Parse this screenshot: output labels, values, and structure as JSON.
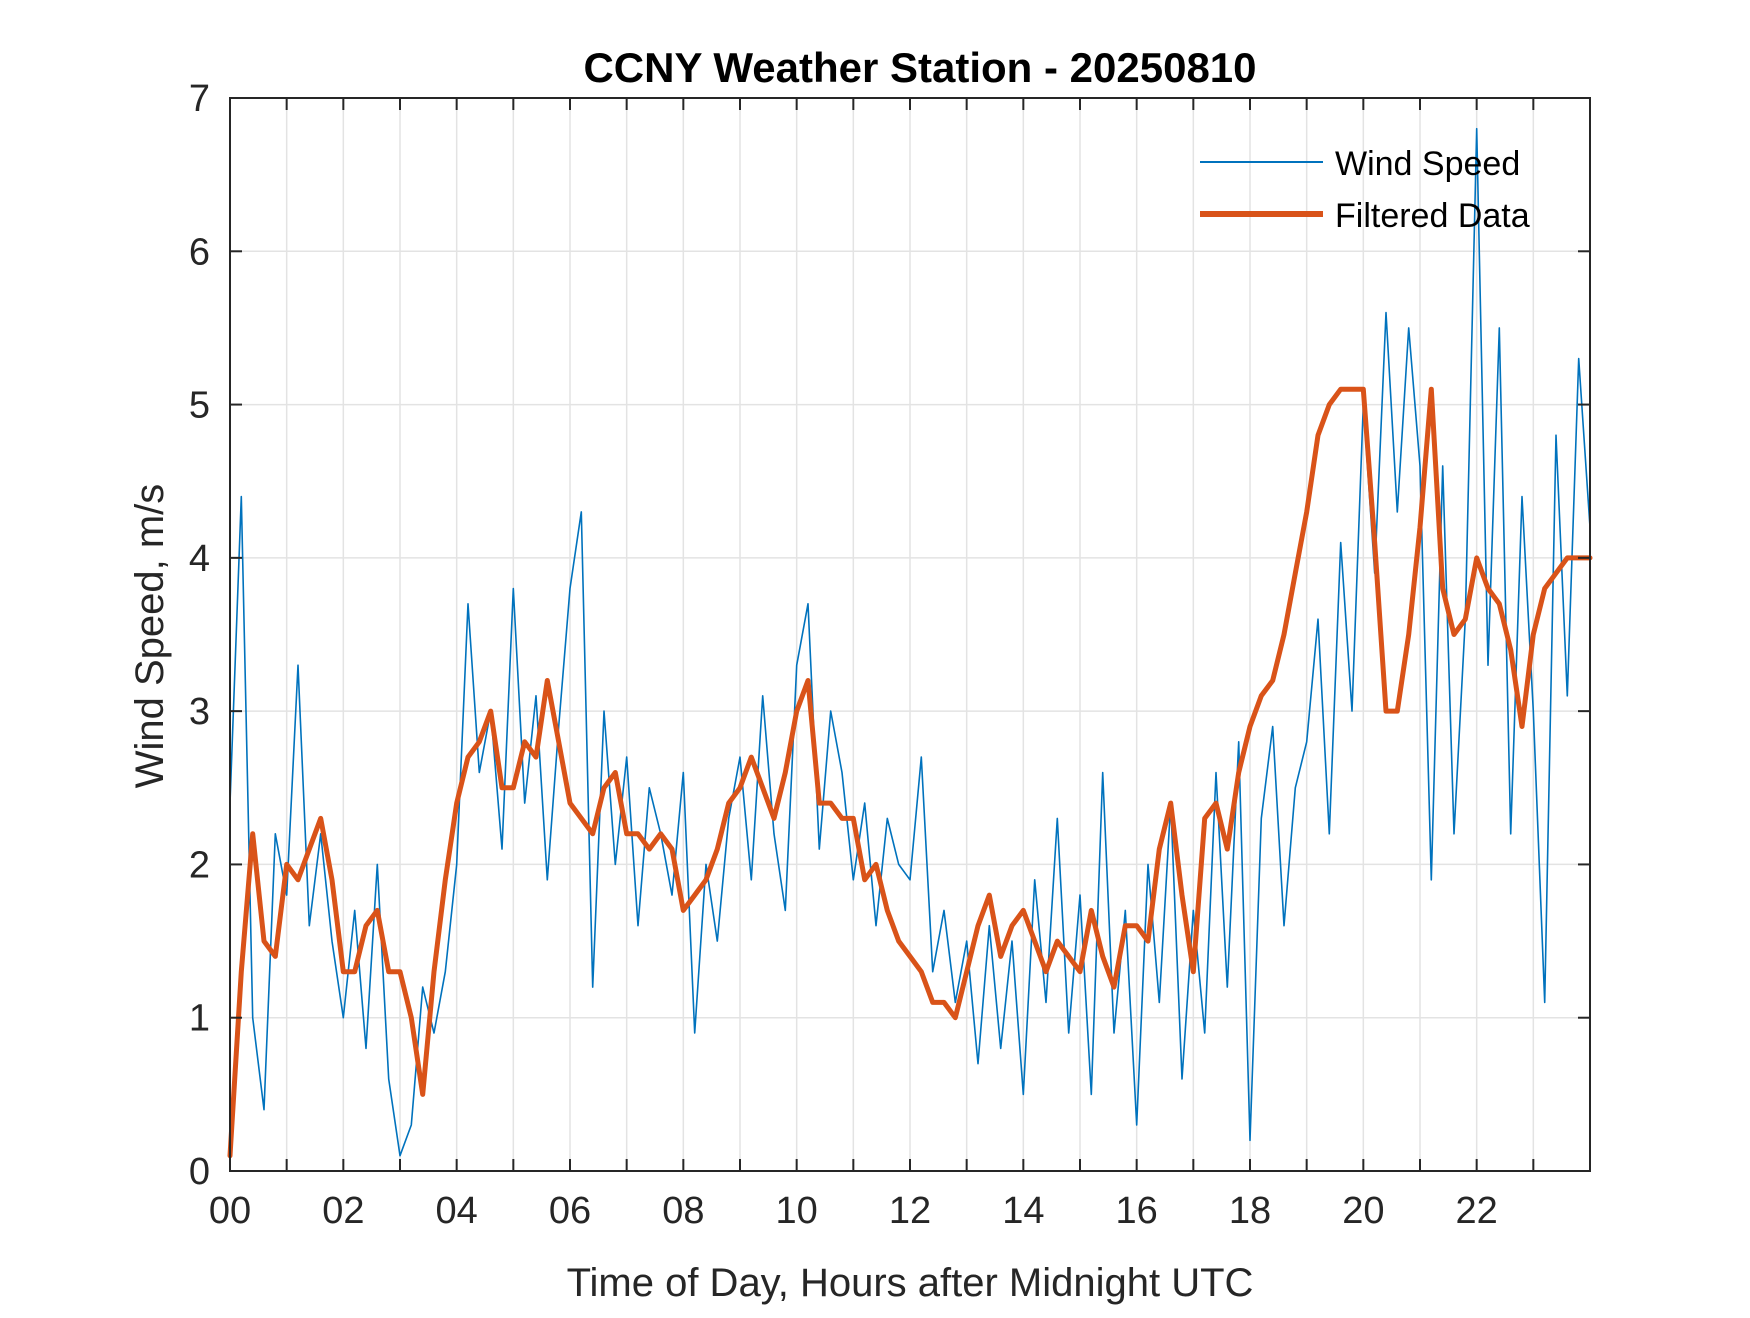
{
  "chart_data": {
    "type": "line",
    "title": "CCNY Weather Station - 20250810",
    "xlabel": "Time of Day, Hours after Midnight UTC",
    "ylabel": "Wind Speed, m/s",
    "xlim": [
      0,
      24
    ],
    "ylim": [
      0,
      7
    ],
    "x_major_ticks": [
      0,
      2,
      4,
      6,
      8,
      10,
      12,
      14,
      16,
      18,
      20,
      22
    ],
    "x_tick_labels": [
      "00",
      "02",
      "04",
      "06",
      "08",
      "10",
      "12",
      "14",
      "16",
      "18",
      "20",
      "22"
    ],
    "x_grid_step": 1,
    "y_ticks": [
      0,
      1,
      2,
      3,
      4,
      5,
      6,
      7
    ],
    "y_tick_labels": [
      "0",
      "1",
      "2",
      "3",
      "4",
      "5",
      "6",
      "7"
    ],
    "grid": true,
    "legend_position": "top-right",
    "colors": {
      "wind_speed": "#0072BD",
      "filtered": "#D95319",
      "grid": "#e3e3e3",
      "axes": "#262626"
    },
    "series": [
      {
        "name": "Wind Speed",
        "style": "thin",
        "note": "raw 1-minute samples fluctuate roughly ±1 m/s around the filtered trend",
        "x": [
          0.0,
          0.2,
          0.4,
          0.6,
          0.8,
          1.0,
          1.2,
          1.4,
          1.6,
          1.8,
          2.0,
          2.2,
          2.4,
          2.6,
          2.8,
          3.0,
          3.2,
          3.4,
          3.6,
          3.8,
          4.0,
          4.2,
          4.4,
          4.6,
          4.8,
          5.0,
          5.2,
          5.4,
          5.6,
          5.8,
          6.0,
          6.2,
          6.4,
          6.6,
          6.8,
          7.0,
          7.2,
          7.4,
          7.6,
          7.8,
          8.0,
          8.2,
          8.4,
          8.6,
          8.8,
          9.0,
          9.2,
          9.4,
          9.6,
          9.8,
          10.0,
          10.2,
          10.4,
          10.6,
          10.8,
          11.0,
          11.2,
          11.4,
          11.6,
          11.8,
          12.0,
          12.2,
          12.4,
          12.6,
          12.8,
          13.0,
          13.2,
          13.4,
          13.6,
          13.8,
          14.0,
          14.2,
          14.4,
          14.6,
          14.8,
          15.0,
          15.2,
          15.4,
          15.6,
          15.8,
          16.0,
          16.2,
          16.4,
          16.6,
          16.8,
          17.0,
          17.2,
          17.4,
          17.6,
          17.8,
          18.0,
          18.2,
          18.4,
          18.6,
          18.8,
          19.0,
          19.2,
          19.4,
          19.6,
          19.8,
          20.0,
          20.2,
          20.4,
          20.6,
          20.8,
          21.0,
          21.2,
          21.4,
          21.6,
          21.8,
          22.0,
          22.2,
          22.4,
          22.6,
          22.8,
          23.0,
          23.2,
          23.4,
          23.6,
          23.8,
          24.0
        ],
        "y": [
          2.4,
          4.4,
          1.0,
          0.4,
          2.2,
          1.8,
          3.3,
          1.6,
          2.2,
          1.5,
          1.0,
          1.7,
          0.8,
          2.0,
          0.6,
          0.1,
          0.3,
          1.2,
          0.9,
          1.3,
          2.0,
          3.7,
          2.6,
          3.0,
          2.1,
          3.8,
          2.4,
          3.1,
          1.9,
          2.9,
          3.8,
          4.3,
          1.2,
          3.0,
          2.0,
          2.7,
          1.6,
          2.5,
          2.2,
          1.8,
          2.6,
          0.9,
          2.0,
          1.5,
          2.3,
          2.7,
          1.9,
          3.1,
          2.2,
          1.7,
          3.3,
          3.7,
          2.1,
          3.0,
          2.6,
          1.9,
          2.4,
          1.6,
          2.3,
          2.0,
          1.9,
          2.7,
          1.3,
          1.7,
          1.1,
          1.5,
          0.7,
          1.6,
          0.8,
          1.5,
          0.5,
          1.9,
          1.1,
          2.3,
          0.9,
          1.8,
          0.5,
          2.6,
          0.9,
          1.7,
          0.3,
          2.0,
          1.1,
          2.4,
          0.6,
          1.7,
          0.9,
          2.6,
          1.2,
          2.8,
          0.2,
          2.3,
          2.9,
          1.6,
          2.5,
          2.8,
          3.6,
          2.2,
          4.1,
          3.0,
          5.0,
          3.9,
          5.6,
          4.3,
          5.5,
          4.6,
          1.9,
          4.6,
          2.2,
          3.6,
          6.8,
          3.3,
          5.5,
          2.2,
          4.4,
          3.0,
          1.1,
          4.8,
          3.1,
          5.3,
          4.2
        ]
      },
      {
        "name": "Filtered Data",
        "style": "thick",
        "x": [
          0.0,
          0.2,
          0.4,
          0.6,
          0.8,
          1.0,
          1.2,
          1.4,
          1.6,
          1.8,
          2.0,
          2.2,
          2.4,
          2.6,
          2.8,
          3.0,
          3.2,
          3.4,
          3.6,
          3.8,
          4.0,
          4.2,
          4.4,
          4.6,
          4.8,
          5.0,
          5.2,
          5.4,
          5.6,
          5.8,
          6.0,
          6.2,
          6.4,
          6.6,
          6.8,
          7.0,
          7.2,
          7.4,
          7.6,
          7.8,
          8.0,
          8.2,
          8.4,
          8.6,
          8.8,
          9.0,
          9.2,
          9.4,
          9.6,
          9.8,
          10.0,
          10.2,
          10.4,
          10.6,
          10.8,
          11.0,
          11.2,
          11.4,
          11.6,
          11.8,
          12.0,
          12.2,
          12.4,
          12.6,
          12.8,
          13.0,
          13.2,
          13.4,
          13.6,
          13.8,
          14.0,
          14.2,
          14.4,
          14.6,
          14.8,
          15.0,
          15.2,
          15.4,
          15.6,
          15.8,
          16.0,
          16.2,
          16.4,
          16.6,
          16.8,
          17.0,
          17.2,
          17.4,
          17.6,
          17.8,
          18.0,
          18.2,
          18.4,
          18.6,
          18.8,
          19.0,
          19.2,
          19.4,
          19.6,
          19.8,
          20.0,
          20.2,
          20.4,
          20.6,
          20.8,
          21.0,
          21.2,
          21.4,
          21.6,
          21.8,
          22.0,
          22.2,
          22.4,
          22.6,
          22.8,
          23.0,
          23.2,
          23.4,
          23.6,
          23.8,
          24.0
        ],
        "y": [
          0.1,
          1.3,
          2.2,
          1.5,
          1.4,
          2.0,
          1.9,
          2.1,
          2.3,
          1.9,
          1.3,
          1.3,
          1.6,
          1.7,
          1.3,
          1.3,
          1.0,
          0.5,
          1.3,
          1.9,
          2.4,
          2.7,
          2.8,
          3.0,
          2.5,
          2.5,
          2.8,
          2.7,
          3.2,
          2.8,
          2.4,
          2.3,
          2.2,
          2.5,
          2.6,
          2.2,
          2.2,
          2.1,
          2.2,
          2.1,
          1.7,
          1.8,
          1.9,
          2.1,
          2.4,
          2.5,
          2.7,
          2.5,
          2.3,
          2.6,
          3.0,
          3.2,
          2.4,
          2.4,
          2.3,
          2.3,
          1.9,
          2.0,
          1.7,
          1.5,
          1.4,
          1.3,
          1.1,
          1.1,
          1.0,
          1.3,
          1.6,
          1.8,
          1.4,
          1.6,
          1.7,
          1.5,
          1.3,
          1.5,
          1.4,
          1.3,
          1.7,
          1.4,
          1.2,
          1.6,
          1.6,
          1.5,
          2.1,
          2.4,
          1.8,
          1.3,
          2.3,
          2.4,
          2.1,
          2.6,
          2.9,
          3.1,
          3.2,
          3.5,
          3.9,
          4.3,
          4.8,
          5.0,
          5.1,
          5.1,
          5.1,
          4.1,
          3.0,
          3.0,
          3.5,
          4.2,
          5.1,
          3.8,
          3.5,
          3.6,
          4.0,
          3.8,
          3.7,
          3.4,
          2.9,
          3.5,
          3.8,
          3.9,
          4.0,
          4.0,
          4.0
        ]
      }
    ]
  }
}
